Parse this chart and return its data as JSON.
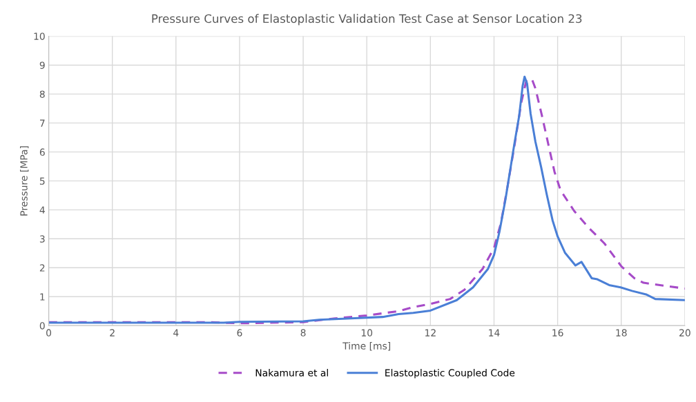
{
  "chart_data": {
    "type": "line",
    "title": "Pressure Curves of Elastoplastic Validation Test Case at Sensor Location 23",
    "xlabel": "Time [ms]",
    "ylabel": "Pressure [MPa]",
    "xlim": [
      0,
      20
    ],
    "xticks": [
      0,
      2,
      4,
      6,
      8,
      10,
      12,
      14,
      16,
      18,
      20
    ],
    "ylim": [
      0,
      10
    ],
    "yticks": [
      0,
      1,
      2,
      3,
      4,
      5,
      6,
      7,
      8,
      9,
      10
    ],
    "grid": true,
    "legend": "bottom",
    "series": [
      {
        "name": "Nakamura et al",
        "color": "#a64bc8",
        "line_style": "dashed",
        "x": [
          0,
          2,
          5,
          6,
          8,
          9,
          10,
          11,
          11.46,
          12,
          12.62,
          13.07,
          13.64,
          14,
          14.22,
          14.43,
          14.64,
          14.86,
          15.01,
          15.19,
          15.3,
          15.51,
          15.72,
          15.9,
          16.09,
          16.52,
          16.96,
          17.47,
          18.01,
          18.41,
          18.7,
          20
        ],
        "values": [
          0.12,
          0.12,
          0.12,
          0.08,
          0.12,
          0.25,
          0.35,
          0.5,
          0.64,
          0.75,
          0.92,
          1.24,
          1.96,
          2.68,
          3.56,
          4.84,
          6.2,
          7.72,
          8.44,
          8.52,
          8.2,
          7.24,
          6.2,
          5.32,
          4.68,
          3.96,
          3.4,
          2.84,
          2.04,
          1.64,
          1.48,
          1.28
        ]
      },
      {
        "name": "Elastoplastic Coupled Code",
        "color": "#4a7fd6",
        "line_style": "solid",
        "x": [
          0,
          5.5,
          6,
          8,
          8.5,
          9.5,
          10.5,
          11,
          11.46,
          12,
          12.83,
          13.34,
          13.81,
          14,
          14.17,
          14.36,
          14.5,
          14.64,
          14.79,
          14.9,
          14.96,
          15.04,
          15.15,
          15.3,
          15.48,
          15.66,
          15.84,
          16,
          16.23,
          16.56,
          16.75,
          17.07,
          17.25,
          17.62,
          17.98,
          18.34,
          18.78,
          19.07,
          20
        ],
        "values": [
          0.1,
          0.1,
          0.13,
          0.15,
          0.2,
          0.25,
          0.3,
          0.4,
          0.44,
          0.52,
          0.88,
          1.32,
          1.96,
          2.44,
          3.24,
          4.36,
          5.32,
          6.28,
          7.24,
          8.28,
          8.6,
          8.36,
          7.32,
          6.36,
          5.48,
          4.52,
          3.64,
          3.08,
          2.52,
          2.08,
          2.2,
          1.64,
          1.6,
          1.4,
          1.32,
          1.2,
          1.08,
          0.92,
          0.88
        ]
      }
    ]
  }
}
